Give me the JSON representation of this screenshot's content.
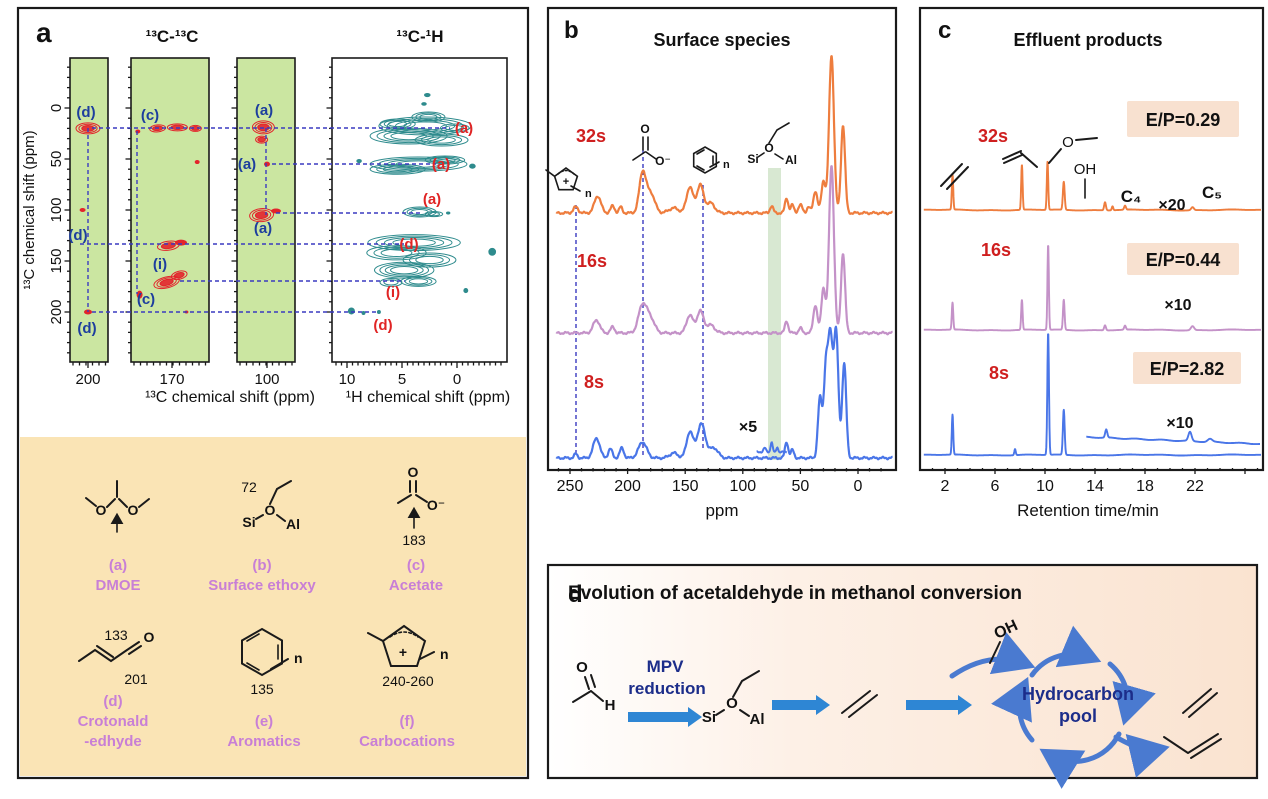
{
  "figure": {
    "panel_a": {
      "label": "a",
      "title_cc": "¹³C-¹³C",
      "title_ch": "¹³C-¹H",
      "ylabel": "¹³C chemical shift (ppm)",
      "xlabel_cc": "¹³C chemical shift (ppm)",
      "xlabel_ch": "¹H chemical shift (ppm)",
      "y_ticks": [
        0,
        50,
        100,
        150,
        200
      ],
      "x_ticks_cc": [
        200,
        170,
        100
      ],
      "x_ticks_ch": [
        10,
        5,
        0
      ],
      "peak_labels_navy": [
        "(d)",
        "(c)",
        "(a)",
        "(a)",
        "(a)",
        "(d)",
        "(i)",
        "(c)",
        "(d)"
      ],
      "peak_labels_red": [
        "(a)",
        "(a)",
        "(a)",
        "(d)",
        "(i)",
        "(d)"
      ],
      "structures": [
        {
          "tag": "(a)",
          "name": "DMOE",
          "o1": "O",
          "o2": "O"
        },
        {
          "tag": "(b)",
          "name": "Surface ethoxy",
          "shift": "72",
          "si": "Si",
          "o": "O",
          "al": "Al"
        },
        {
          "tag": "(c)",
          "name": "Acetate",
          "shift": "183",
          "o_top": "O",
          "o_minus": "O⁻"
        },
        {
          "tag": "(d)",
          "name": "Crotonald",
          "name2": "-edhyde",
          "shift_c2": "133",
          "shift_c1": "201",
          "o": "O"
        },
        {
          "tag": "(e)",
          "name": "Aromatics",
          "shift": "135",
          "n": "n"
        },
        {
          "tag": "(f)",
          "name": "Carbocations",
          "shift": "240-260",
          "n": "n",
          "charge": "+"
        }
      ]
    },
    "panel_b": {
      "label": "b",
      "title": "Surface species",
      "series_labels": [
        "32s",
        "16s",
        "8s"
      ],
      "magnifier": "×5",
      "xlabel": "ppm",
      "x_ticks": [
        250,
        200,
        150,
        100,
        50,
        0
      ],
      "insets": {
        "cation_plus": "+",
        "cation_n": "n",
        "acetate_o": "O",
        "acetate_o_minus": "O⁻",
        "ring_n": "n",
        "si": "Si",
        "o": "O",
        "al": "Al"
      }
    },
    "panel_c": {
      "label": "c",
      "title": "Effluent products",
      "series_labels": [
        "32s",
        "16s",
        "8s"
      ],
      "badges": [
        "E/P=0.29",
        "E/P=0.44",
        "E/P=2.82"
      ],
      "magnifiers": [
        "×20",
        "×10",
        "×10"
      ],
      "annotations": {
        "oh": "OH",
        "c4": "C₄",
        "c5": "C₅"
      },
      "xlabel": "Retention time/min",
      "x_ticks": [
        2,
        6,
        10,
        14,
        18,
        22
      ]
    },
    "panel_d": {
      "label": "d",
      "title": "Evolution of acetaldehyde in methanol conversion",
      "mpv1": "MPV",
      "mpv2": "reduction",
      "pool1": "Hydrocarbon",
      "pool2": "pool",
      "atoms": {
        "o": "O",
        "h": "H",
        "si": "Si",
        "o_bridge": "O",
        "al": "Al",
        "oh": "OH"
      }
    }
  },
  "chart_data": [
    {
      "id": "a_cc",
      "type": "heatmap",
      "title": "¹³C-¹³C",
      "xlabel": "¹³C chemical shift (ppm)",
      "ylabel": "¹³C chemical shift (ppm)",
      "x_ticks": [
        200,
        170,
        100
      ],
      "y_ticks": [
        0,
        50,
        100,
        150,
        200
      ],
      "note": "cross peak format [13C_col_ppm, 13C_row_ppm, rx_px, ry_px, rot_deg, contour_rings]",
      "cross_peaks": [
        [
          200,
          20,
          12,
          5.5,
          0,
          3
        ],
        [
          203,
          100,
          3,
          2,
          0,
          1
        ],
        [
          200,
          200,
          4,
          2.5,
          0,
          1
        ],
        [
          178,
          20,
          8,
          3.5,
          -5,
          2
        ],
        [
          167,
          19,
          10,
          3.5,
          0,
          2
        ],
        [
          157,
          20,
          6,
          3,
          0,
          2
        ],
        [
          189,
          23,
          2.5,
          2,
          0,
          1
        ],
        [
          156,
          53,
          2.5,
          2,
          0,
          1
        ],
        [
          172,
          135,
          11,
          4.5,
          -8,
          2
        ],
        [
          165,
          132,
          6,
          3,
          0,
          1
        ],
        [
          173,
          171,
          13,
          5.5,
          -14,
          3
        ],
        [
          166,
          164,
          8,
          4,
          -14,
          2
        ],
        [
          188,
          183,
          3,
          4,
          0,
          1
        ],
        [
          162,
          200,
          2,
          1.5,
          0,
          1
        ],
        [
          102,
          19,
          11,
          6.5,
          0,
          3
        ],
        [
          103,
          31,
          6,
          3.5,
          0,
          2
        ],
        [
          100,
          55,
          3,
          2.5,
          0,
          1
        ],
        [
          103,
          105,
          12,
          6.5,
          -5,
          3
        ],
        [
          95,
          101,
          5,
          2.5,
          0,
          1
        ]
      ]
    },
    {
      "id": "a_ch",
      "type": "heatmap",
      "title": "¹³C-¹H",
      "xlabel": "¹H chemical shift (ppm)",
      "ylabel": "¹³C chemical shift (ppm)",
      "x_ticks": [
        10,
        5,
        0
      ],
      "note": "blob format [1H_ppm, 13C_ppm, 1H_halfwidth_ppm, 13C_halfwidth_ppm, contour_rings]",
      "blobs": [
        [
          2.9,
          17.6,
          4.2,
          8.8,
          4
        ],
        [
          4.4,
          27.5,
          3.5,
          7.8,
          4
        ],
        [
          1.4,
          31.4,
          2.4,
          5.9,
          3
        ],
        [
          2.6,
          8.8,
          1.5,
          4.9,
          3
        ],
        [
          5.4,
          15.7,
          1.6,
          4.9,
          3
        ],
        [
          0.2,
          19.6,
          1.3,
          3.9,
          2
        ],
        [
          2.7,
          -12.7,
          0.3,
          2,
          1
        ],
        [
          3,
          -4,
          0.25,
          1.8,
          1
        ],
        [
          3.5,
          55,
          4.4,
          6.9,
          4
        ],
        [
          5.4,
          60,
          2.5,
          4.9,
          3
        ],
        [
          1.1,
          51,
          1.8,
          3.9,
          3
        ],
        [
          -1.4,
          57,
          0.3,
          2.5,
          1
        ],
        [
          8.9,
          52,
          0.25,
          2,
          1
        ],
        [
          3.4,
          102,
          1.5,
          4.9,
          3
        ],
        [
          2.1,
          104,
          0.8,
          2.5,
          2
        ],
        [
          0.8,
          103,
          0.2,
          1.5,
          1
        ],
        [
          3.9,
          132,
          4.2,
          7.8,
          4
        ],
        [
          5.5,
          142,
          2.7,
          6.9,
          3
        ],
        [
          2.5,
          149,
          2.4,
          6.9,
          3
        ],
        [
          4.8,
          159,
          2.7,
          7.8,
          4
        ],
        [
          3.5,
          170,
          1.6,
          4.9,
          3
        ],
        [
          6,
          171,
          1,
          3.9,
          2
        ],
        [
          -3.2,
          141,
          0.35,
          3.9,
          1
        ],
        [
          -0.8,
          179,
          0.22,
          2.5,
          1
        ],
        [
          9.6,
          199,
          0.32,
          3.4,
          1
        ],
        [
          8.5,
          201,
          0.18,
          2,
          1
        ],
        [
          7.1,
          200,
          0.18,
          2,
          1
        ]
      ]
    },
    {
      "id": "b",
      "type": "line",
      "title": "Surface species",
      "xlabel": "ppm",
      "x_range": [
        262,
        -30
      ],
      "x_ticks": [
        250,
        200,
        150,
        100,
        50,
        0
      ],
      "dashed_guides_ppm": [
        245,
        187,
        135
      ],
      "highlight_band_ppm": [
        77,
        66
      ],
      "note": "peak format [ppm, height_px, width_ppm]",
      "series": [
        {
          "name": "32s",
          "color": "#ee7d3e",
          "peaks": [
            [
              245,
              6,
              3
            ],
            [
              226,
              17,
              4
            ],
            [
              213,
              7,
              2.5
            ],
            [
              206,
              6,
              2
            ],
            [
              187,
              40,
              4
            ],
            [
              180,
              20,
              5
            ],
            [
              160,
              5,
              6
            ],
            [
              146,
              26,
              4
            ],
            [
              137,
              28,
              4
            ],
            [
              128,
              10,
              5
            ],
            [
              75,
              7,
              2
            ],
            [
              62,
              15,
              2
            ],
            [
              57,
              8,
              2
            ],
            [
              50,
              8,
              2.5
            ],
            [
              43,
              6,
              2
            ],
            [
              37,
              22,
              2.5
            ],
            [
              30,
              32,
              2.5
            ],
            [
              23,
              158,
              3
            ],
            [
              13,
              88,
              2.5
            ]
          ]
        },
        {
          "name": "16s",
          "color": "#c492c8",
          "peaks": [
            [
              227,
              13,
              4
            ],
            [
              213,
              6,
              2.5
            ],
            [
              187,
              28,
              5
            ],
            [
              180,
              14,
              5
            ],
            [
              146,
              18,
              4
            ],
            [
              137,
              22,
              4
            ],
            [
              128,
              8,
              5
            ],
            [
              62,
              12,
              2
            ],
            [
              50,
              5,
              2
            ],
            [
              37,
              28,
              2.5
            ],
            [
              30,
              45,
              2.5
            ],
            [
              23,
              168,
              3
            ],
            [
              13,
              80,
              2.5
            ]
          ]
        },
        {
          "name": "8s",
          "color": "#4a76e8",
          "peaks": [
            [
              245,
              4,
              2
            ],
            [
              227,
              20,
              4
            ],
            [
              215,
              9,
              2.5
            ],
            [
              205,
              10,
              2.5
            ],
            [
              187,
              16,
              5
            ],
            [
              160,
              5,
              5
            ],
            [
              146,
              26,
              4
            ],
            [
              136,
              34,
              5
            ],
            [
              125,
              10,
              5
            ],
            [
              62,
              16,
              2
            ],
            [
              57,
              8,
              2
            ],
            [
              33,
              60,
              2.5
            ],
            [
              28,
              85,
              2.5
            ],
            [
              24,
              118,
              2.8
            ],
            [
              19,
              125,
              2.8
            ],
            [
              12,
              95,
              2.5
            ]
          ]
        }
      ],
      "inset": {
        "series": "8s",
        "label": "×5",
        "x_range": [
          88,
          62
        ],
        "peaks": [
          [
            75,
            10,
            1.2
          ],
          [
            70,
            5,
            1
          ],
          [
            81,
            4,
            1.5
          ]
        ]
      }
    },
    {
      "id": "c",
      "type": "line",
      "title": "Effluent products",
      "xlabel": "Retention time/min",
      "x_range": [
        0.3,
        27.3
      ],
      "x_ticks": [
        2,
        6,
        10,
        14,
        18,
        22
      ],
      "note": "peak format [retention_min, height_px, width_min]",
      "series": [
        {
          "name": "32s",
          "color": "#ee7d3e",
          "E_P": "E/P=0.29",
          "peaks": [
            [
              2.6,
              35,
              0.08
            ],
            [
              8.15,
              45,
              0.08
            ],
            [
              10.2,
              48,
              0.08
            ],
            [
              11.5,
              28,
              0.1
            ],
            [
              14.8,
              8,
              0.1
            ],
            [
              15.4,
              4,
              0.08
            ],
            [
              16.4,
              4,
              0.1
            ],
            [
              21.8,
              3,
              0.15
            ]
          ]
        },
        {
          "name": "16s",
          "color": "#c492c8",
          "E_P": "E/P=0.44",
          "peaks": [
            [
              2.6,
              27,
              0.08
            ],
            [
              8.15,
              30,
              0.08
            ],
            [
              10.25,
              85,
              0.08
            ],
            [
              11.5,
              30,
              0.09
            ],
            [
              14.8,
              5,
              0.1
            ],
            [
              16.4,
              4,
              0.1
            ],
            [
              21.8,
              4,
              0.18
            ]
          ]
        },
        {
          "name": "8s",
          "color": "#4a76e8",
          "E_P": "E/P=2.82",
          "peaks": [
            [
              2.6,
              40,
              0.08
            ],
            [
              7.6,
              6,
              0.08
            ],
            [
              10.25,
              122,
              0.09
            ],
            [
              11.5,
              45,
              0.1
            ]
          ]
        }
      ],
      "inset": {
        "series": "8s",
        "label": "×10",
        "x_range": [
          13.3,
          27.2
        ],
        "peaks": [
          [
            14.9,
            8,
            0.12
          ],
          [
            21.6,
            9,
            0.18
          ],
          [
            23.2,
            3,
            0.25
          ]
        ]
      }
    }
  ],
  "colors": {
    "strip_green": "#cbe6a1",
    "contour_red": "#e3242b",
    "contour_teal": "#2e8b8d",
    "guide_navy": "#3a3ac0",
    "label_navy": "#1d3e9e",
    "label_red": "#e02424",
    "tan_bg": "#fae4b5",
    "purple_label": "#c87fd6",
    "orange": "#ee7d3e",
    "plum": "#c492c8",
    "blue": "#4a76e8",
    "series_red": "#cf1f1f",
    "badge_bg": "#f8e1d0",
    "band_green": "#d8e8d2",
    "arrow_blue": "#2e86d4",
    "cycle_blue": "#4a7ad0",
    "navy_text": "#1c2d8a"
  }
}
